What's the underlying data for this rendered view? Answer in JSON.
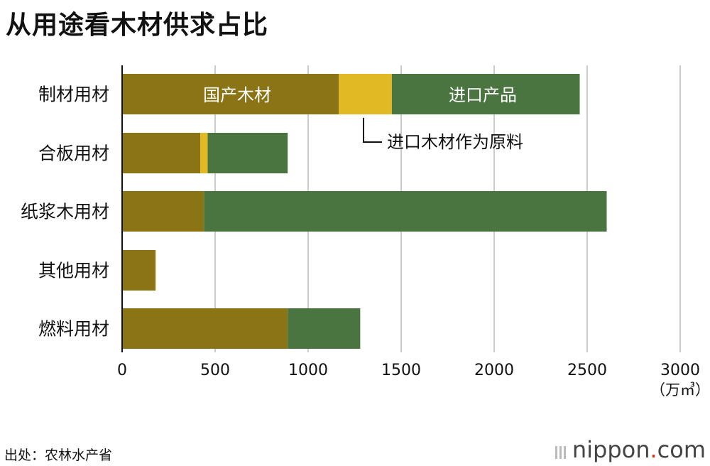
{
  "title": "从用途看木材供求占比",
  "source": "出处：农林水产省",
  "logo": {
    "name": "nippon",
    "dot": ".",
    "tld": "com"
  },
  "colors": {
    "domestic": "#8a7416",
    "imported_material": "#e1b925",
    "imported_product": "#4a7540",
    "grid": "#cccccc",
    "axis": "#111111"
  },
  "chart_data": {
    "type": "bar",
    "orientation": "horizontal",
    "stacked": true,
    "categories": [
      "制材用材",
      "合板用材",
      "纸浆木用材",
      "其他用材",
      "燃料用材"
    ],
    "series": [
      {
        "name": "国产木材",
        "values": [
          1165,
          420,
          440,
          180,
          890
        ]
      },
      {
        "name": "进口木材作为原料",
        "values": [
          285,
          40,
          0,
          0,
          0
        ]
      },
      {
        "name": "进口产品",
        "values": [
          1010,
          430,
          2165,
          0,
          390
        ]
      }
    ],
    "xticks": [
      "0",
      "500",
      "1000",
      "1500",
      "2000",
      "2500",
      "3000"
    ],
    "xlim": [
      0,
      3000
    ],
    "xunit": "（万㎥）",
    "grid": true,
    "annotations": {
      "domestic_label": "国产木材",
      "imported_product_label": "进口产品",
      "imported_material_label": "进口木材作为原料"
    }
  }
}
